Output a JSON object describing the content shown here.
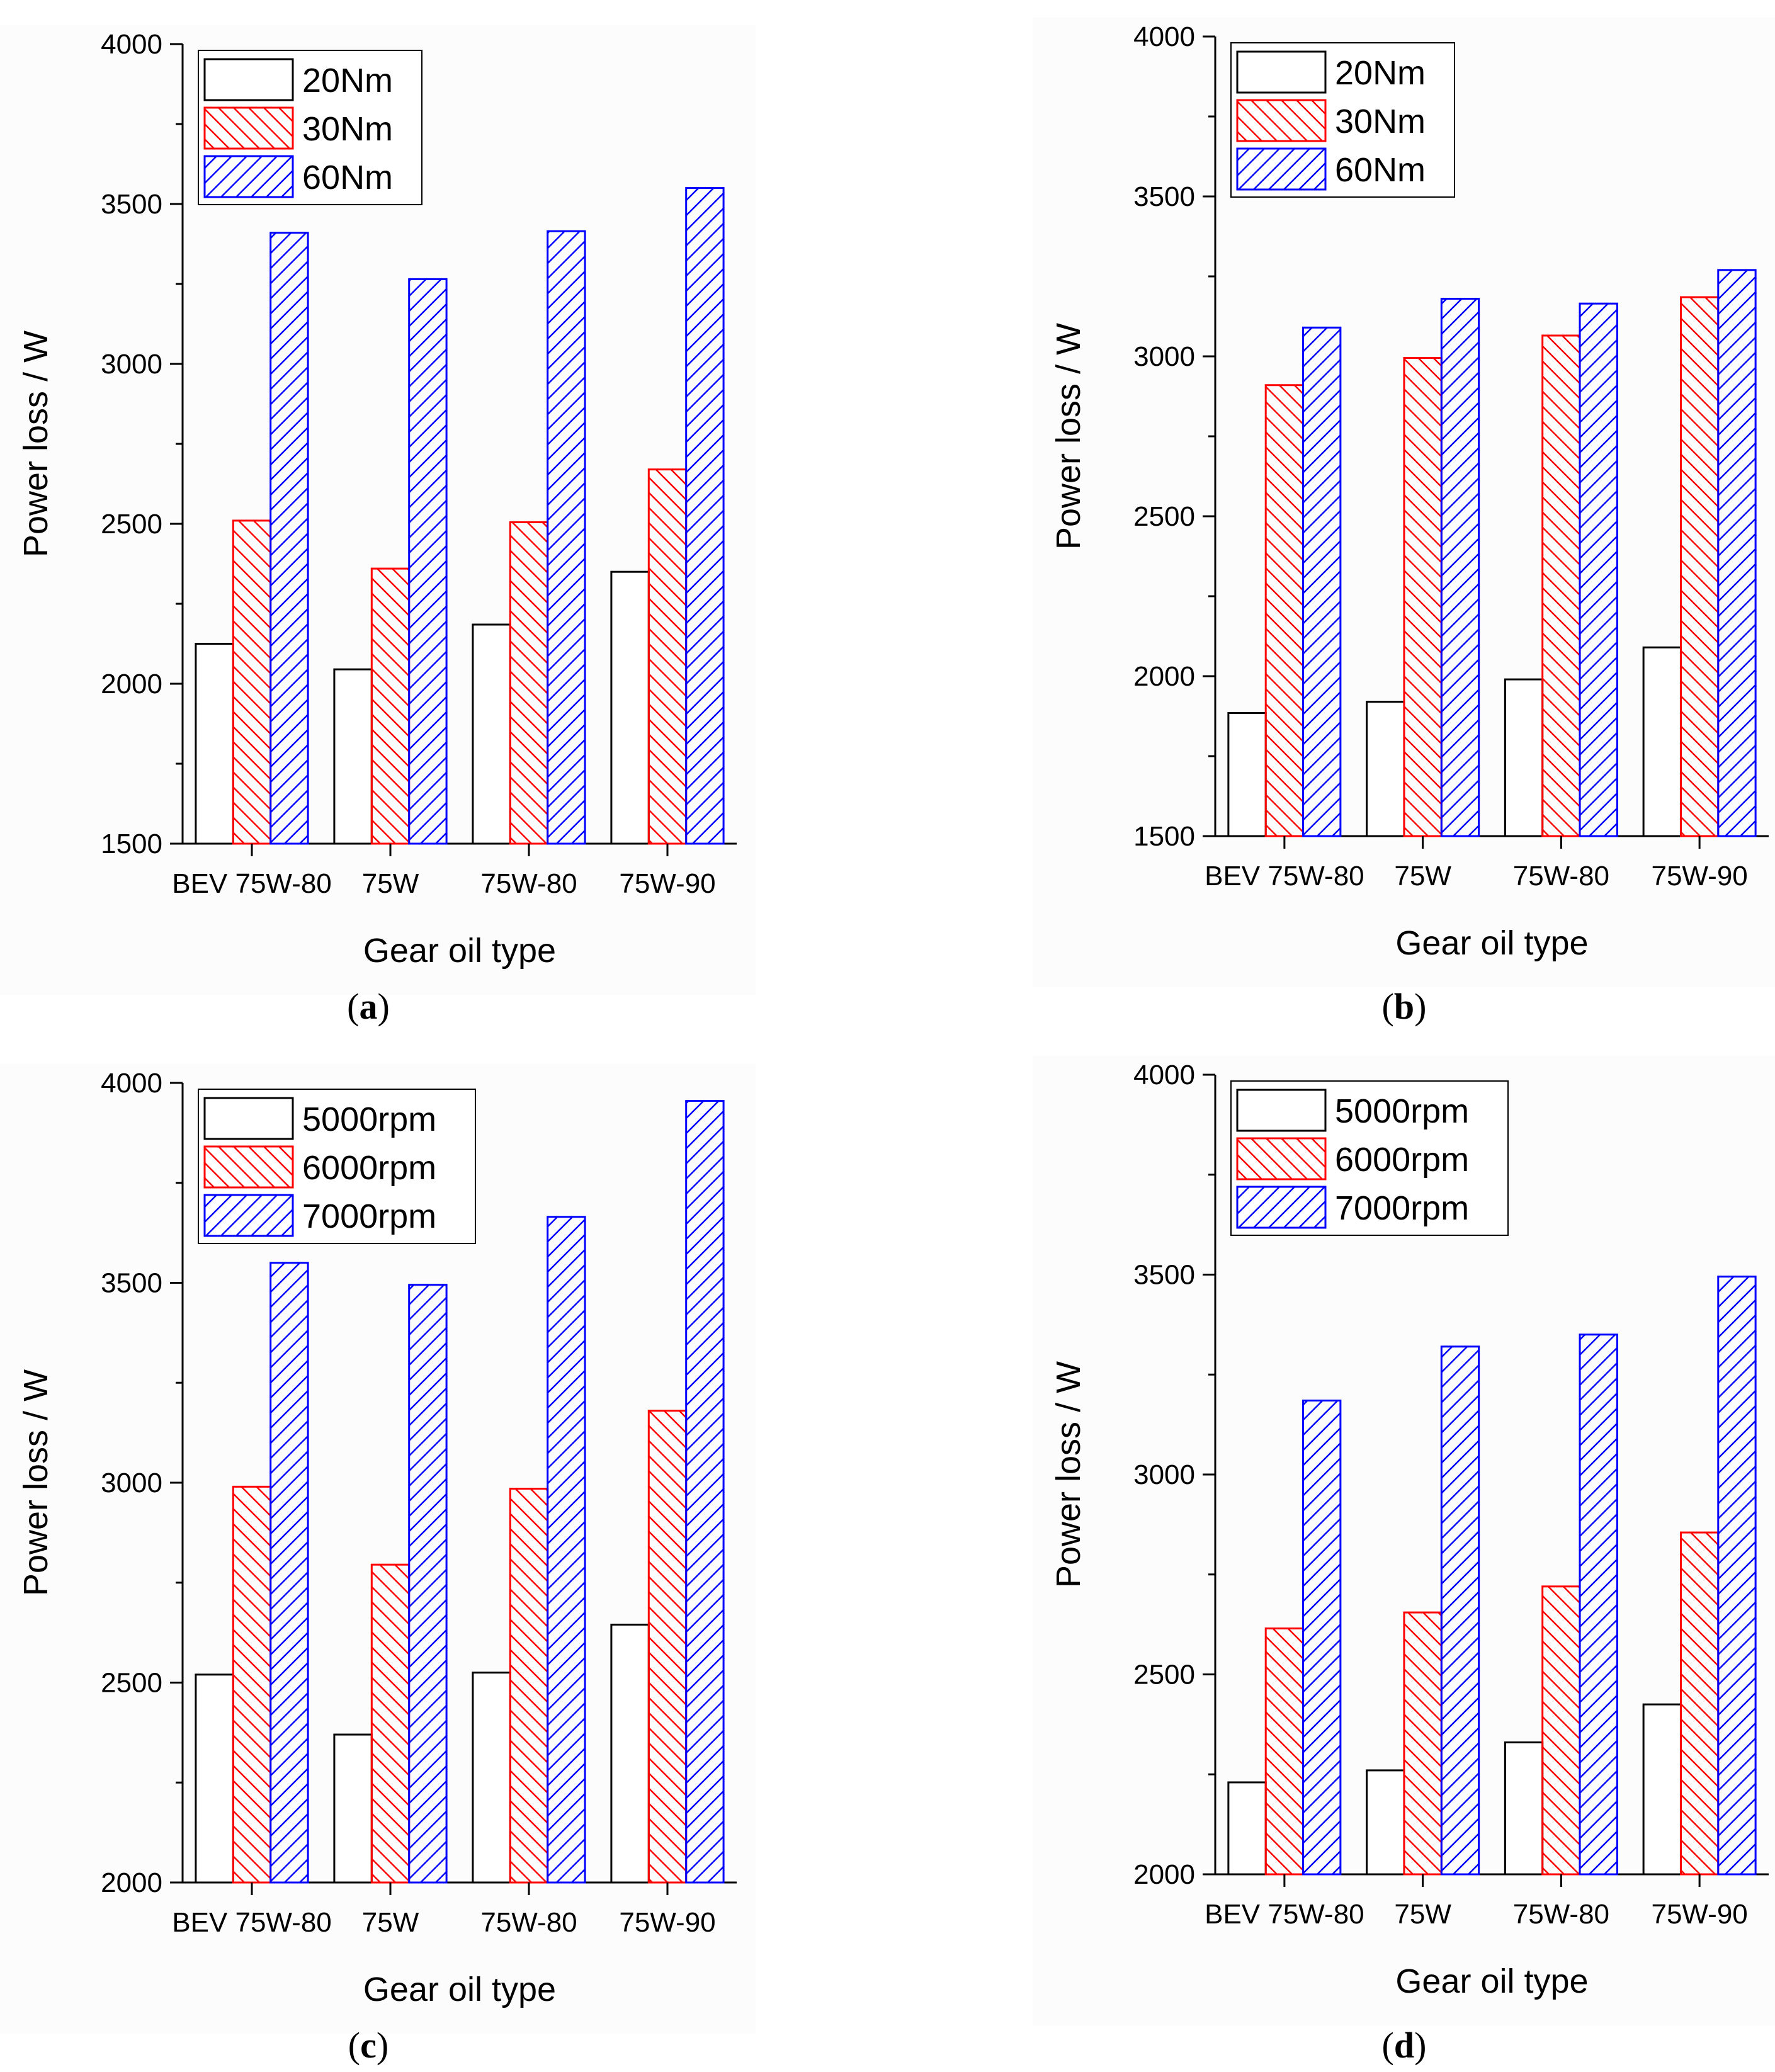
{
  "chart_data": [
    {
      "id": "a",
      "type": "bar",
      "caption_letter": "a",
      "xlabel": "Gear oil type",
      "ylabel": "Power loss / W",
      "ylim": [
        1500,
        4000
      ],
      "yticks": [
        1500,
        2000,
        2500,
        3000,
        3500,
        4000
      ],
      "categories": [
        "BEV 75W-80",
        "75W",
        "75W-80",
        "75W-90"
      ],
      "series": [
        {
          "name": "20Nm",
          "values": [
            2125,
            2045,
            2185,
            2350
          ],
          "color": "#000000",
          "pattern": "none"
        },
        {
          "name": "30Nm",
          "values": [
            2510,
            2360,
            2505,
            2670
          ],
          "color": "#ff0000",
          "pattern": "backslash"
        },
        {
          "name": "60Nm",
          "values": [
            3410,
            3265,
            3415,
            3550
          ],
          "color": "#0000ff",
          "pattern": "slash"
        }
      ],
      "legend": "top-left"
    },
    {
      "id": "b",
      "type": "bar",
      "caption_letter": "b",
      "xlabel": "Gear oil type",
      "ylabel": "Power loss / W",
      "ylim": [
        1500,
        4000
      ],
      "yticks": [
        1500,
        2000,
        2500,
        3000,
        3500,
        4000
      ],
      "categories": [
        "BEV 75W-80",
        "75W",
        "75W-80",
        "75W-90"
      ],
      "series": [
        {
          "name": "20Nm",
          "values": [
            1885,
            1920,
            1990,
            2090
          ],
          "color": "#000000",
          "pattern": "none"
        },
        {
          "name": "30Nm",
          "values": [
            2910,
            2995,
            3065,
            3185
          ],
          "color": "#ff0000",
          "pattern": "backslash"
        },
        {
          "name": "60Nm",
          "values": [
            3090,
            3180,
            3165,
            3270
          ],
          "color": "#0000ff",
          "pattern": "slash"
        }
      ],
      "legend": "top-left"
    },
    {
      "id": "c",
      "type": "bar",
      "caption_letter": "c",
      "xlabel": "Gear oil type",
      "ylabel": "Power loss / W",
      "ylim": [
        2000,
        4000
      ],
      "yticks": [
        2000,
        2500,
        3000,
        3500,
        4000
      ],
      "categories": [
        "BEV 75W-80",
        "75W",
        "75W-80",
        "75W-90"
      ],
      "series": [
        {
          "name": "5000rpm",
          "values": [
            2520,
            2370,
            2525,
            2645
          ],
          "color": "#000000",
          "pattern": "none"
        },
        {
          "name": "6000rpm",
          "values": [
            2990,
            2795,
            2985,
            3180
          ],
          "color": "#ff0000",
          "pattern": "backslash"
        },
        {
          "name": "7000rpm",
          "values": [
            3550,
            3495,
            3665,
            3955
          ],
          "color": "#0000ff",
          "pattern": "slash"
        }
      ],
      "legend": "top-left"
    },
    {
      "id": "d",
      "type": "bar",
      "caption_letter": "d",
      "xlabel": "Gear oil type",
      "ylabel": "Power loss / W",
      "ylim": [
        2000,
        4000
      ],
      "yticks": [
        2000,
        2500,
        3000,
        3500,
        4000
      ],
      "categories": [
        "BEV 75W-80",
        "75W",
        "75W-80",
        "75W-90"
      ],
      "series": [
        {
          "name": "5000rpm",
          "values": [
            2230,
            2260,
            2330,
            2425
          ],
          "color": "#000000",
          "pattern": "none"
        },
        {
          "name": "6000rpm",
          "values": [
            2615,
            2655,
            2720,
            2855
          ],
          "color": "#ff0000",
          "pattern": "backslash"
        },
        {
          "name": "7000rpm",
          "values": [
            3185,
            3320,
            3350,
            3495
          ],
          "color": "#0000ff",
          "pattern": "slash"
        }
      ],
      "legend": "top-left"
    }
  ]
}
